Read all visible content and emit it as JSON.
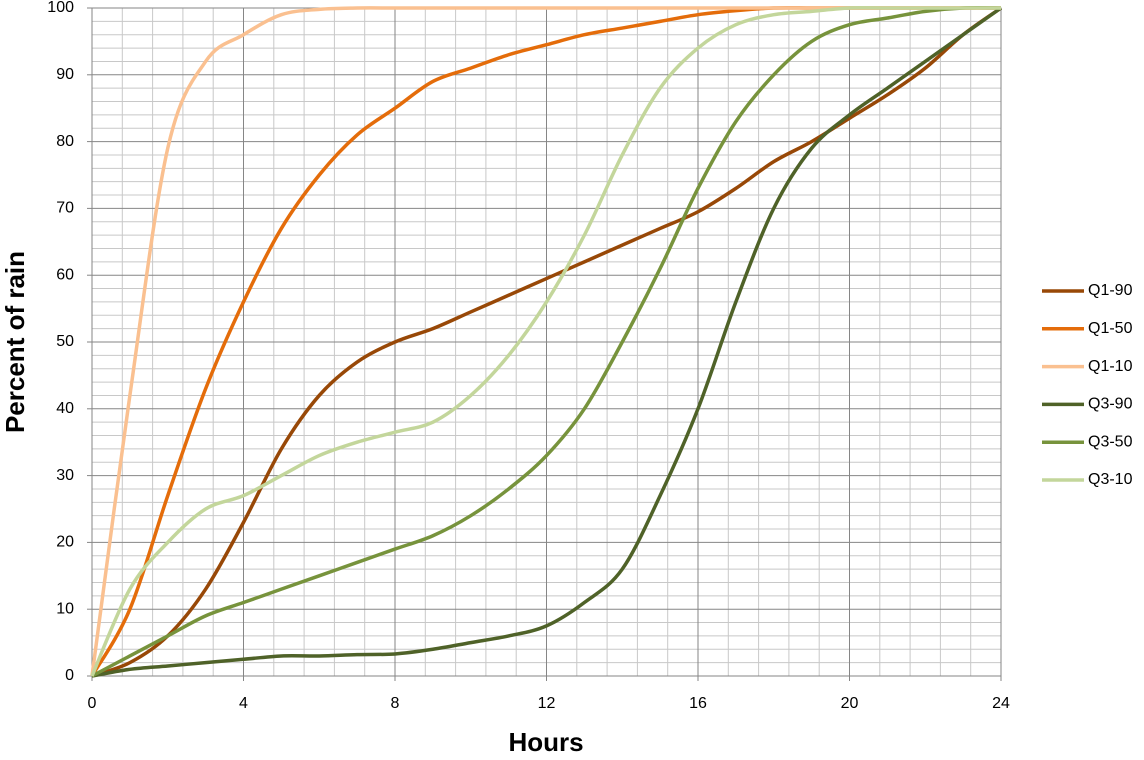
{
  "chart_data": {
    "type": "line",
    "x_label": "Hours",
    "y_label": "Percent of rain",
    "x": [
      0,
      1,
      2,
      3,
      4,
      5,
      6,
      7,
      8,
      9,
      10,
      11,
      12,
      13,
      14,
      15,
      16,
      17,
      18,
      19,
      20,
      21,
      22,
      23,
      24
    ],
    "series": [
      {
        "name": "Q1-90",
        "color": "#984807",
        "values": [
          0,
          2,
          6,
          13,
          23,
          34,
          42,
          47,
          50,
          52,
          54.5,
          57,
          59.5,
          62,
          64.5,
          67,
          69.5,
          73,
          77,
          80,
          83.5,
          87,
          91,
          96,
          100
        ]
      },
      {
        "name": "Q1-50",
        "color": "#E46C0A",
        "values": [
          0,
          10,
          27,
          43,
          56,
          67,
          75,
          81,
          85,
          89,
          91,
          93,
          94.5,
          96,
          97,
          98,
          99,
          99.6,
          100,
          100,
          100,
          100,
          100,
          100,
          100
        ]
      },
      {
        "name": "Q1-10",
        "color": "#FAC090",
        "values": [
          0,
          42,
          79,
          92,
          96,
          99,
          99.8,
          100,
          100,
          100,
          100,
          100,
          100,
          100,
          100,
          100,
          100,
          100,
          100,
          100,
          100,
          100,
          100,
          100,
          100
        ]
      },
      {
        "name": "Q3-90",
        "color": "#4F6228",
        "values": [
          0,
          1,
          1.5,
          2,
          2.5,
          3,
          3,
          3.2,
          3.3,
          4,
          5,
          6,
          7.5,
          11,
          16,
          27,
          40,
          56,
          70,
          79,
          84,
          88,
          92,
          96,
          100
        ]
      },
      {
        "name": "Q3-50",
        "color": "#77933C",
        "values": [
          0,
          3,
          6,
          9,
          11,
          13,
          15,
          17,
          19,
          21,
          24,
          28,
          33,
          40,
          50,
          61,
          73,
          83,
          90,
          95,
          97.5,
          98.5,
          99.5,
          100,
          100
        ]
      },
      {
        "name": "Q3-10",
        "color": "#C3D69B",
        "values": [
          0,
          13,
          20,
          25,
          27,
          30,
          33,
          35,
          36.5,
          38,
          42,
          48,
          56,
          66,
          78,
          88,
          94,
          97.5,
          99,
          99.5,
          100,
          100,
          100,
          100,
          100
        ]
      }
    ],
    "xlim": [
      0,
      24
    ],
    "xticks": [
      0,
      4,
      8,
      12,
      16,
      20,
      24
    ],
    "ylim": [
      0,
      100
    ],
    "yticks": [
      0,
      10,
      20,
      30,
      40,
      50,
      60,
      70,
      80,
      90,
      100
    ],
    "grid": true,
    "legend": "right"
  }
}
